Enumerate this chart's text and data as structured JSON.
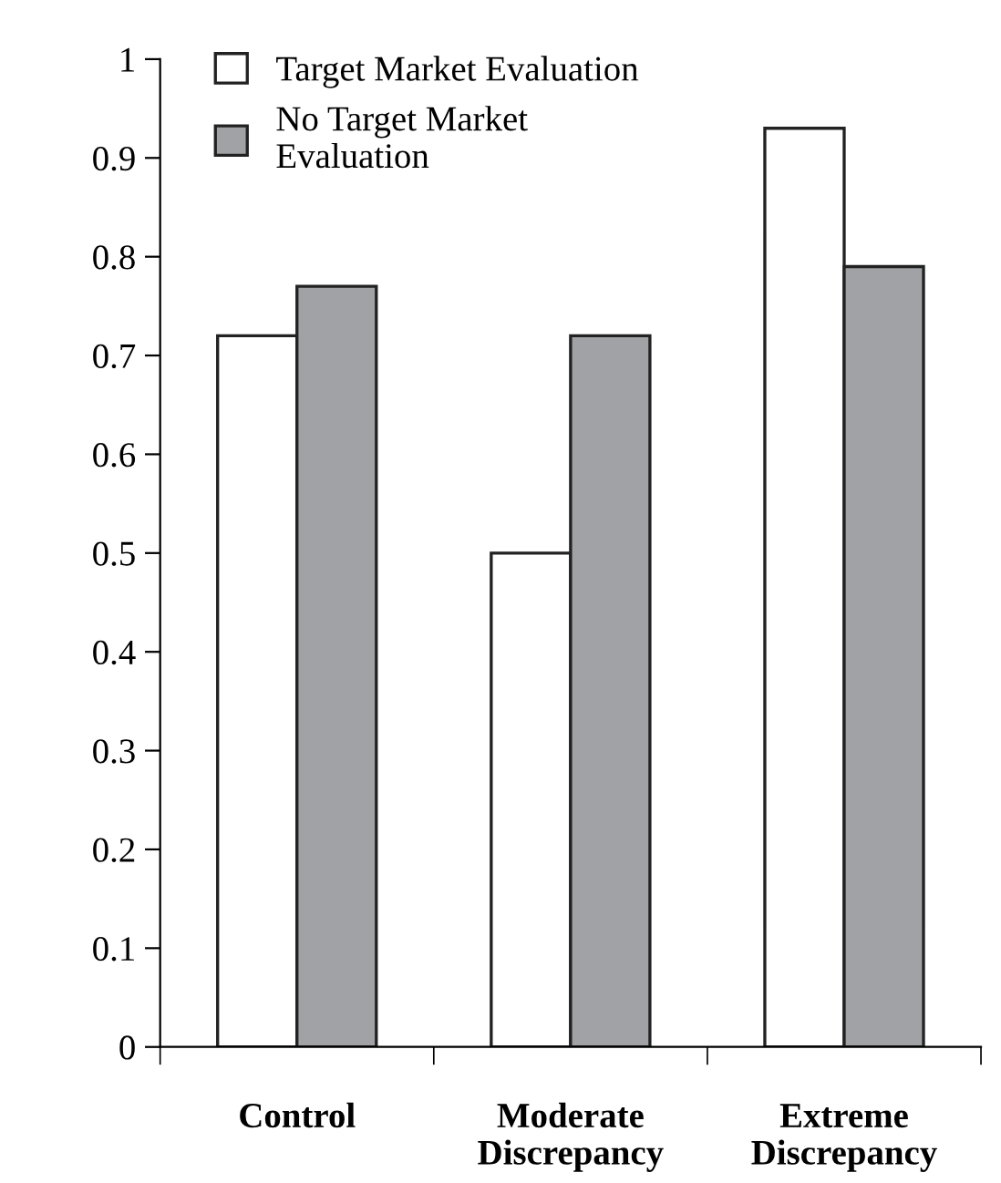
{
  "chart_data": {
    "type": "bar",
    "categories": [
      "Control",
      "Moderate\nDiscrepancy",
      "Extreme\nDiscrepancy"
    ],
    "series": [
      {
        "name": "Target Market Evaluation",
        "color": "#ffffff",
        "values": [
          0.72,
          0.5,
          0.93
        ]
      },
      {
        "name": "No Target Market\nEvaluation",
        "color": "#a0a2a5",
        "values": [
          0.77,
          0.72,
          0.79
        ]
      }
    ],
    "ylim": [
      0,
      1
    ],
    "yticks": [
      0,
      0.1,
      0.2,
      0.3,
      0.4,
      0.5,
      0.6,
      0.7,
      0.8,
      0.9,
      1
    ],
    "grid": false,
    "legend": "top left"
  }
}
